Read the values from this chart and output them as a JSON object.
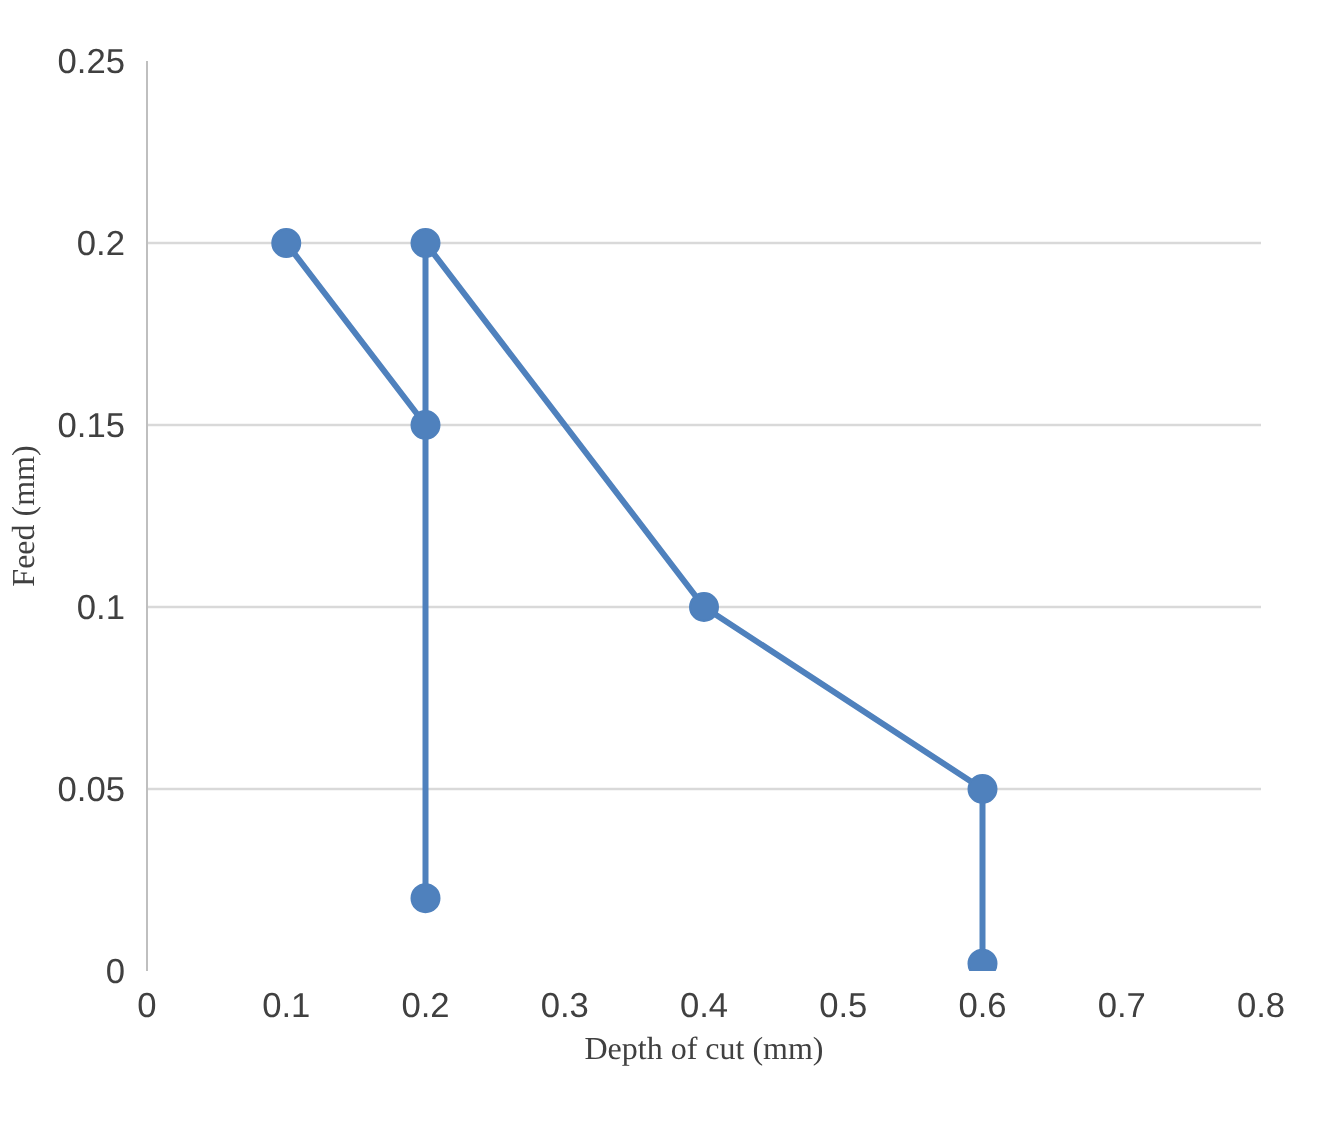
{
  "chart_data": {
    "type": "line",
    "xlabel": "Depth of cut (mm)",
    "ylabel": "Feed (mm)",
    "x": [
      0.1,
      0.2,
      0.2,
      0.2,
      0.4,
      0.6,
      0.6
    ],
    "series": [
      {
        "color": "#4f81bd",
        "values": [
          0.2,
          0.15,
          0.02,
          0.2,
          0.1,
          0.05,
          0.002
        ]
      }
    ],
    "xlim": [
      0,
      0.8
    ],
    "xticks": [
      0,
      0.1,
      0.2,
      0.3,
      0.4,
      0.5,
      0.6,
      0.7,
      0.8
    ],
    "ylim": [
      0,
      0.25
    ],
    "yticks": [
      0,
      0.05,
      0.1,
      0.15,
      0.2,
      0.25
    ],
    "grid": "y",
    "marker": "circle",
    "line_style": "solid"
  }
}
